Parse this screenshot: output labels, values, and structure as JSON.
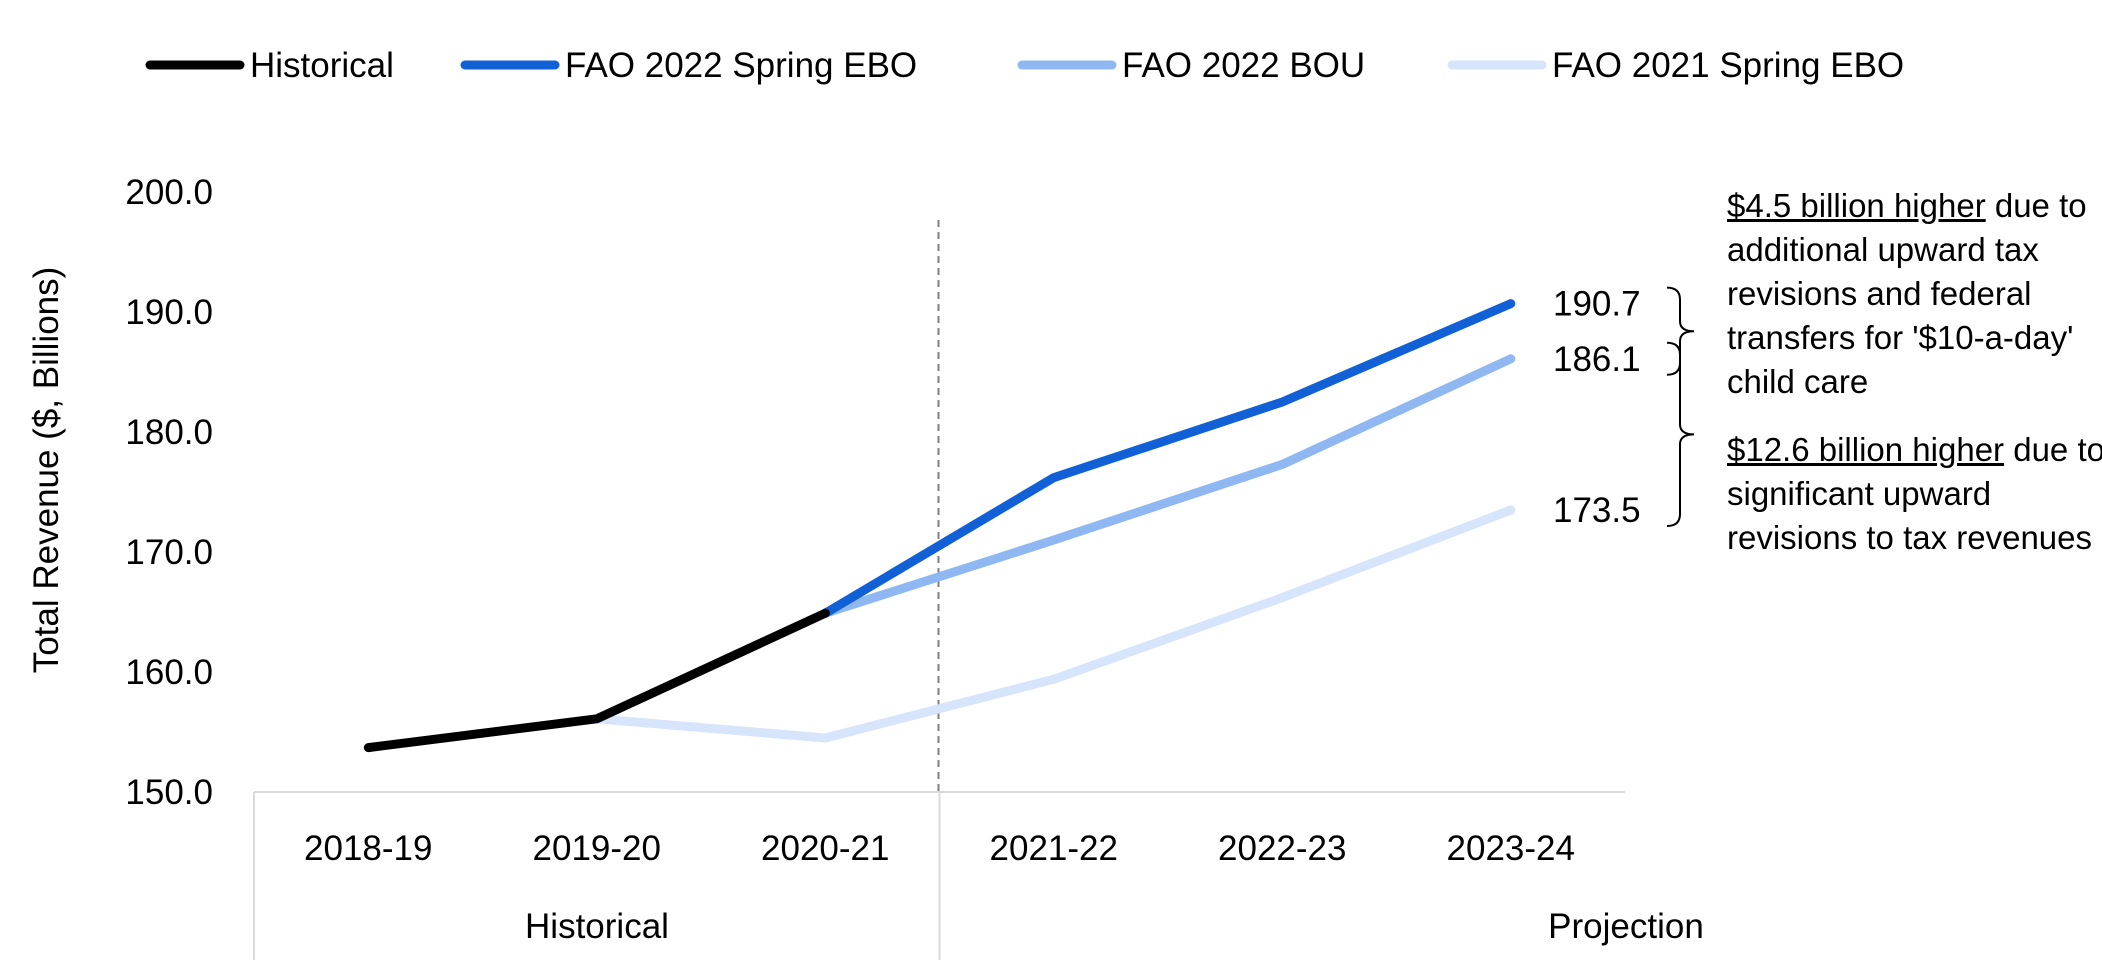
{
  "chart_data": {
    "type": "line",
    "title": "",
    "ylabel": "Total Revenue ($, Billions)",
    "xlabel": "",
    "ylim": [
      150,
      200
    ],
    "yticks": [
      "150.0",
      "160.0",
      "170.0",
      "180.0",
      "190.0",
      "200.0"
    ],
    "categories": [
      "2018-19",
      "2019-20",
      "2020-21",
      "2021-22",
      "2022-23",
      "2023-24"
    ],
    "period_groups": [
      {
        "label": "Historical",
        "categories": [
          "2018-19",
          "2019-20",
          "2020-21"
        ]
      },
      {
        "label": "Projection",
        "categories": [
          "2021-22",
          "2022-23",
          "2023-24"
        ]
      }
    ],
    "legend_position": "top",
    "grid": false,
    "series": [
      {
        "name": "Historical",
        "color": "#000000",
        "values": [
          153.7,
          156.1,
          164.9,
          null,
          null,
          null
        ]
      },
      {
        "name": "FAO 2022 Spring EBO",
        "color": "#1160d6",
        "values": [
          null,
          null,
          164.9,
          176.2,
          182.5,
          190.7
        ]
      },
      {
        "name": "FAO 2022 BOU",
        "color": "#8fb8f2",
        "values": [
          null,
          null,
          164.9,
          171.0,
          177.3,
          186.1
        ]
      },
      {
        "name": "FAO 2021 Spring EBO",
        "color": "#d6e5fb",
        "values": [
          null,
          156.1,
          154.5,
          159.4,
          166.2,
          173.5
        ]
      }
    ],
    "end_labels": [
      {
        "series": "FAO 2022 Spring EBO",
        "value": 190.7,
        "text": "190.7"
      },
      {
        "series": "FAO 2022 BOU",
        "value": 186.1,
        "text": "186.1"
      },
      {
        "series": "FAO 2021 Spring EBO",
        "value": 173.5,
        "text": "173.5"
      }
    ],
    "annotations": [
      {
        "between": [
          186.1,
          190.7
        ],
        "highlight": "$4.5 billion higher",
        "text": " due to additional upward tax revisions and federal transfers for '$10-a-day' child care"
      },
      {
        "between": [
          173.5,
          186.1
        ],
        "highlight": "$12.6 billion higher",
        "text": " due to significant upward revisions to tax revenues"
      }
    ]
  }
}
